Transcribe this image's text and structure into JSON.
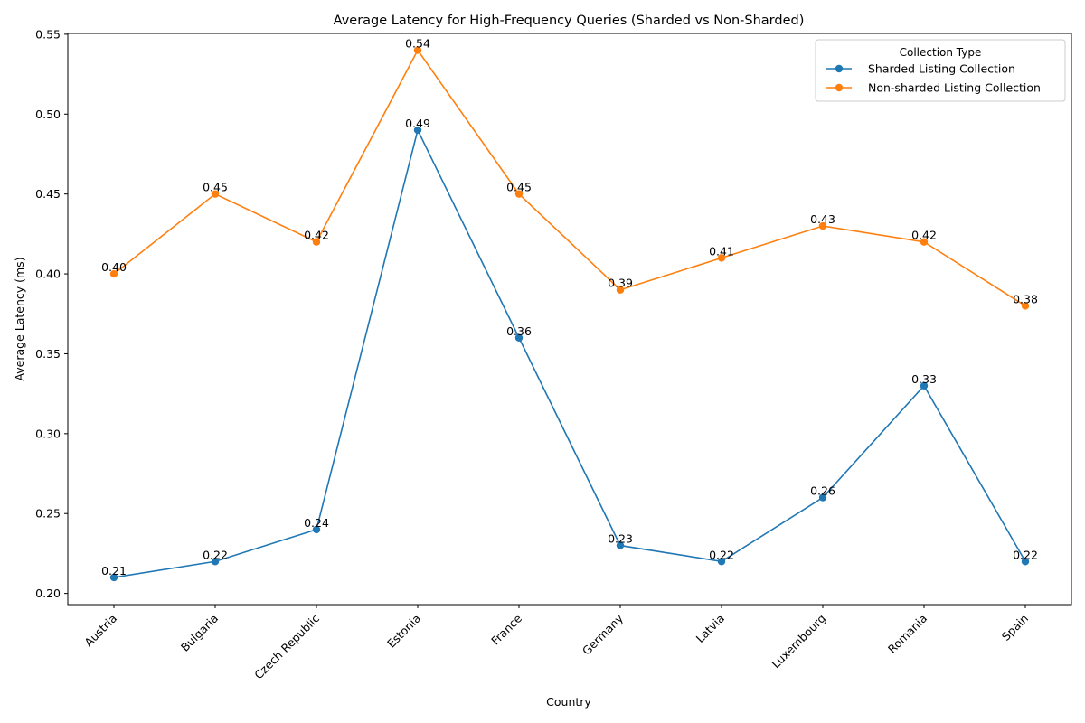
{
  "chart_data": {
    "type": "line",
    "title": "Average Latency for High-Frequency Queries (Sharded vs Non-Sharded)",
    "xlabel": "Country",
    "ylabel": "Average Latency (ms)",
    "categories": [
      "Austria",
      "Bulgaria",
      "Czech Republic",
      "Estonia",
      "France",
      "Germany",
      "Latvia",
      "Luxembourg",
      "Romania",
      "Spain"
    ],
    "ylim": [
      0.193,
      0.5505
    ],
    "yticks": [
      0.2,
      0.25,
      0.3,
      0.35,
      0.4,
      0.45,
      0.5,
      0.55
    ],
    "ytick_labels": [
      "0.20",
      "0.25",
      "0.30",
      "0.35",
      "0.40",
      "0.45",
      "0.50",
      "0.55"
    ],
    "x_tick_rotation": 45,
    "grid": false,
    "legend": {
      "title": "Collection Type",
      "placement": "top-right"
    },
    "series": [
      {
        "name": "Sharded Listing Collection",
        "color": "#1f77b4",
        "values": [
          0.21,
          0.22,
          0.24,
          0.49,
          0.36,
          0.23,
          0.22,
          0.26,
          0.33,
          0.22
        ],
        "labels": [
          "0.21",
          "0.22",
          "0.24",
          "0.49",
          "0.36",
          "0.23",
          "0.22",
          "0.26",
          "0.33",
          "0.22"
        ]
      },
      {
        "name": "Non-sharded Listing Collection",
        "color": "#ff7f0e",
        "values": [
          0.4,
          0.45,
          0.42,
          0.54,
          0.45,
          0.39,
          0.41,
          0.43,
          0.42,
          0.38
        ],
        "labels": [
          "0.40",
          "0.45",
          "0.42",
          "0.54",
          "0.45",
          "0.39",
          "0.41",
          "0.43",
          "0.42",
          "0.38"
        ]
      }
    ]
  }
}
